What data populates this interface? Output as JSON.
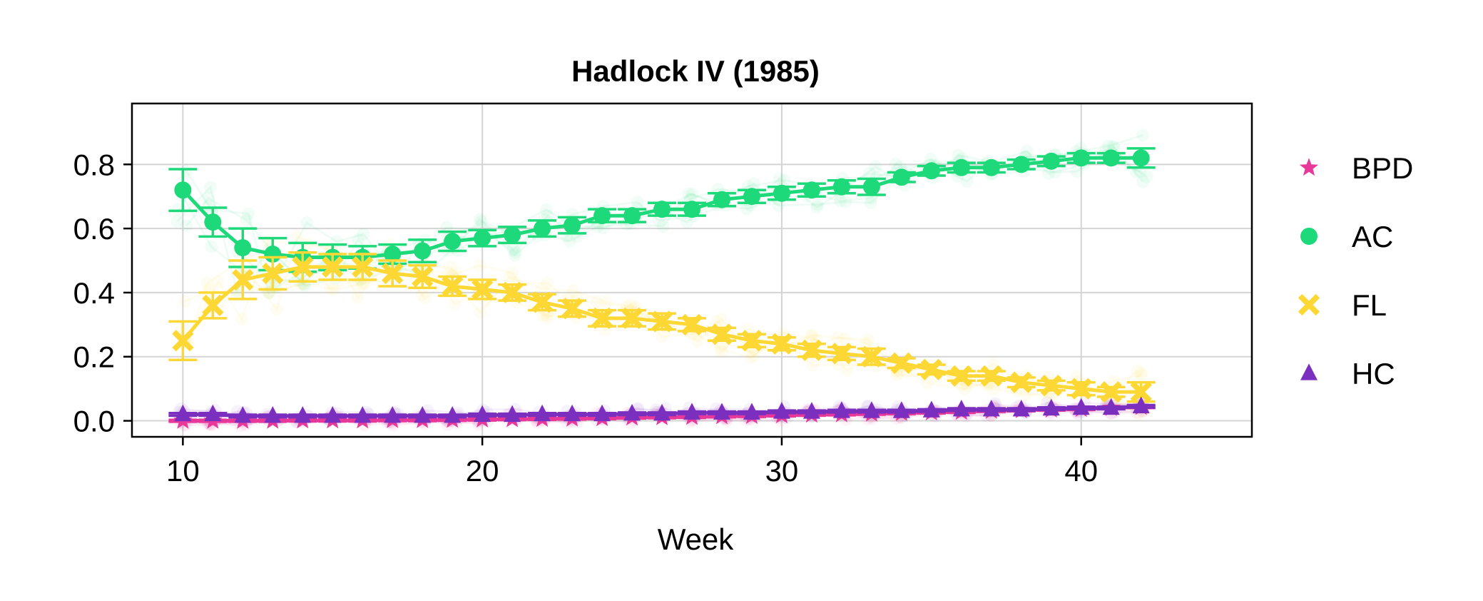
{
  "chart_data": {
    "type": "scatter",
    "title": "Hadlock IV (1985)",
    "xlabel": "Week",
    "ylabel": "",
    "xlim": [
      8.3,
      45.7
    ],
    "ylim": [
      -0.05,
      0.99
    ],
    "xticks": [
      10,
      20,
      30,
      40
    ],
    "yticks": [
      0.0,
      0.2,
      0.4,
      0.6,
      0.8
    ],
    "xtick_labels": [
      "10",
      "20",
      "30",
      "40"
    ],
    "ytick_labels": [
      "0.0",
      "0.2",
      "0.4",
      "0.6",
      "0.8"
    ],
    "grid": true,
    "legend_position": "right",
    "x": [
      10,
      11,
      12,
      13,
      14,
      15,
      16,
      17,
      18,
      19,
      20,
      21,
      22,
      23,
      24,
      25,
      26,
      27,
      28,
      29,
      30,
      31,
      32,
      33,
      34,
      35,
      36,
      37,
      38,
      39,
      40,
      41,
      42
    ],
    "series": [
      {
        "name": "BPD",
        "marker": "star",
        "color": "#e8399a",
        "values": [
          0.0,
          0.0,
          0.0,
          0.0,
          0.001,
          0.001,
          0.001,
          0.002,
          0.002,
          0.003,
          0.004,
          0.005,
          0.006,
          0.007,
          0.008,
          0.01,
          0.011,
          0.012,
          0.014,
          0.015,
          0.017,
          0.019,
          0.02,
          0.022,
          0.024,
          0.026,
          0.028,
          0.031,
          0.033,
          0.035,
          0.037,
          0.04,
          0.043
        ],
        "err": [
          0.003,
          0.003,
          0.003,
          0.003,
          0.003,
          0.003,
          0.003,
          0.003,
          0.003,
          0.003,
          0.003,
          0.003,
          0.003,
          0.003,
          0.003,
          0.003,
          0.003,
          0.003,
          0.003,
          0.003,
          0.003,
          0.003,
          0.003,
          0.003,
          0.003,
          0.003,
          0.003,
          0.003,
          0.003,
          0.003,
          0.003,
          0.003,
          0.003
        ]
      },
      {
        "name": "AC",
        "marker": "circle",
        "color": "#1ed97a",
        "values": [
          0.72,
          0.62,
          0.54,
          0.52,
          0.51,
          0.51,
          0.51,
          0.52,
          0.53,
          0.56,
          0.57,
          0.58,
          0.6,
          0.61,
          0.64,
          0.64,
          0.66,
          0.66,
          0.69,
          0.7,
          0.71,
          0.72,
          0.73,
          0.73,
          0.76,
          0.78,
          0.79,
          0.79,
          0.8,
          0.81,
          0.82,
          0.82,
          0.82
        ],
        "err": [
          0.065,
          0.045,
          0.06,
          0.05,
          0.045,
          0.04,
          0.035,
          0.03,
          0.035,
          0.03,
          0.025,
          0.025,
          0.025,
          0.025,
          0.02,
          0.02,
          0.02,
          0.02,
          0.02,
          0.02,
          0.02,
          0.02,
          0.02,
          0.025,
          0.015,
          0.015,
          0.015,
          0.015,
          0.015,
          0.015,
          0.015,
          0.015,
          0.03
        ]
      },
      {
        "name": "FL",
        "marker": "x",
        "color": "#fdd835",
        "values": [
          0.25,
          0.36,
          0.44,
          0.46,
          0.48,
          0.48,
          0.48,
          0.46,
          0.45,
          0.42,
          0.41,
          0.4,
          0.37,
          0.35,
          0.32,
          0.32,
          0.31,
          0.3,
          0.27,
          0.25,
          0.24,
          0.22,
          0.21,
          0.2,
          0.18,
          0.16,
          0.14,
          0.14,
          0.12,
          0.11,
          0.1,
          0.09,
          0.09
        ],
        "err": [
          0.06,
          0.04,
          0.06,
          0.05,
          0.045,
          0.04,
          0.04,
          0.04,
          0.035,
          0.03,
          0.03,
          0.025,
          0.025,
          0.025,
          0.025,
          0.025,
          0.025,
          0.02,
          0.02,
          0.02,
          0.02,
          0.02,
          0.02,
          0.025,
          0.015,
          0.015,
          0.015,
          0.015,
          0.015,
          0.015,
          0.02,
          0.015,
          0.03
        ]
      },
      {
        "name": "HC",
        "marker": "triangle",
        "color": "#7b2fbe",
        "values": [
          0.02,
          0.02,
          0.015,
          0.015,
          0.015,
          0.015,
          0.015,
          0.015,
          0.015,
          0.015,
          0.018,
          0.018,
          0.02,
          0.02,
          0.02,
          0.022,
          0.022,
          0.025,
          0.025,
          0.025,
          0.028,
          0.028,
          0.03,
          0.03,
          0.03,
          0.032,
          0.035,
          0.035,
          0.035,
          0.038,
          0.04,
          0.04,
          0.045
        ],
        "err": [
          0.004,
          0.004,
          0.004,
          0.004,
          0.004,
          0.004,
          0.004,
          0.004,
          0.004,
          0.004,
          0.004,
          0.004,
          0.004,
          0.004,
          0.004,
          0.004,
          0.004,
          0.004,
          0.004,
          0.004,
          0.004,
          0.004,
          0.004,
          0.004,
          0.004,
          0.004,
          0.004,
          0.004,
          0.004,
          0.004,
          0.004,
          0.004,
          0.004
        ]
      }
    ]
  }
}
